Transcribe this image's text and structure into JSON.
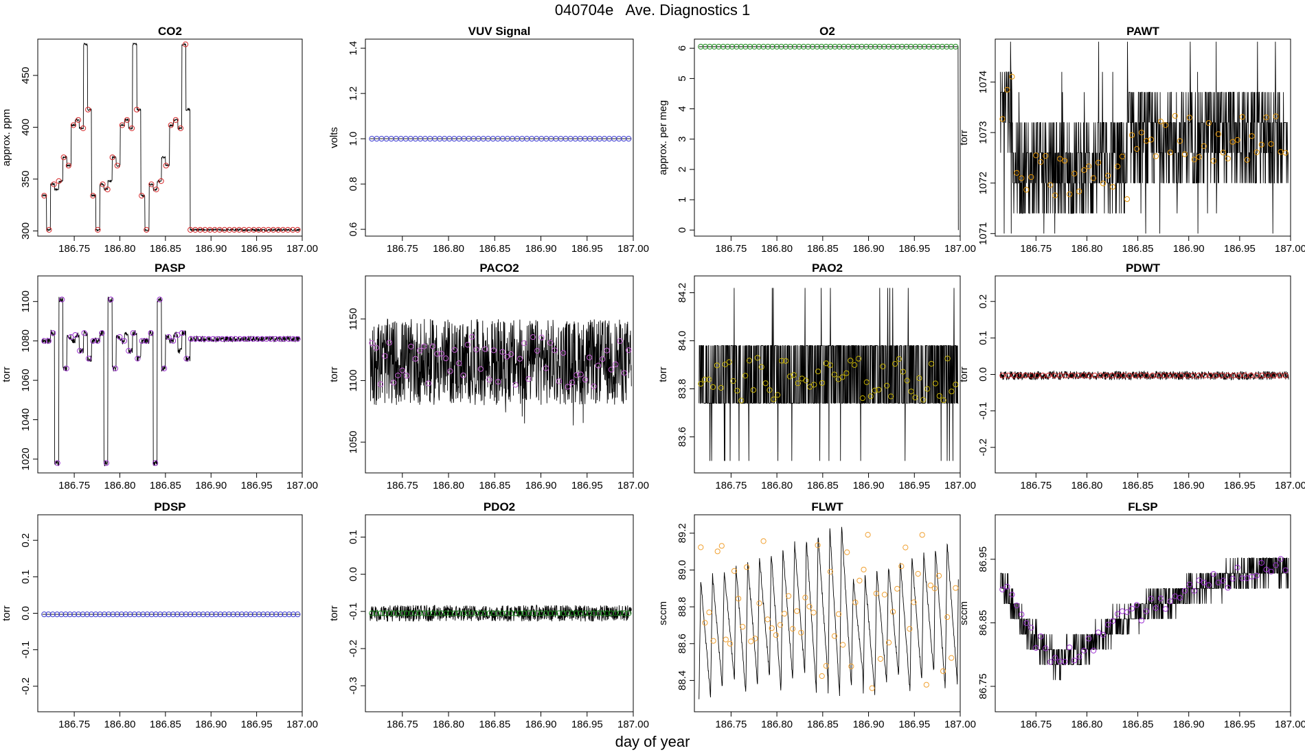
{
  "title": "040704e   Ave. Diagnostics 1",
  "xlabel": "day of year",
  "chart_data": [
    {
      "id": "co2",
      "type": "line",
      "title": "CO2",
      "ylabel": "approx. ppm",
      "xlim": [
        186.71,
        187.0
      ],
      "ylim": [
        295,
        485
      ],
      "xticks": [
        "186.75",
        "186.80",
        "186.85",
        "186.90",
        "186.95",
        "187.00"
      ],
      "yticks": [
        "300",
        "350",
        "400",
        "450"
      ],
      "marker_color": "#d62728",
      "marker_count": 53,
      "pattern": "co2_cycle",
      "cycle_values": [
        334,
        301,
        345,
        340,
        348,
        371,
        363,
        402,
        407,
        399,
        480,
        417
      ],
      "tail_value": 301,
      "tail_start": 186.877
    },
    {
      "id": "vuv",
      "type": "line",
      "title": "VUV Signal",
      "ylabel": "volts",
      "xlim": [
        186.71,
        187.0
      ],
      "ylim": [
        0.57,
        1.44
      ],
      "xticks": [
        "186.75",
        "186.80",
        "186.85",
        "186.90",
        "186.95",
        "187.00"
      ],
      "yticks": [
        "0.6",
        "0.8",
        "1.0",
        "1.2",
        "1.4"
      ],
      "marker_color": "#3a3acf",
      "marker_count": 54,
      "pattern": "flat",
      "level": 1.0,
      "noise": 0.0
    },
    {
      "id": "o2",
      "type": "line",
      "title": "O2",
      "ylabel": "approx. per meg",
      "xlim": [
        186.71,
        187.0
      ],
      "ylim": [
        -0.2,
        6.3
      ],
      "xticks": [
        "186.75",
        "186.80",
        "186.85",
        "186.90",
        "186.95",
        "187.00"
      ],
      "yticks": [
        "0",
        "1",
        "2",
        "3",
        "4",
        "5",
        "6"
      ],
      "marker_color": "#1a8a1a",
      "marker_count": 58,
      "pattern": "flat_drop",
      "level": 6.05,
      "noise": 0.0,
      "drop_to": 0.0
    },
    {
      "id": "pawt",
      "type": "line",
      "title": "PAWT",
      "ylabel": "torr",
      "xlim": [
        186.71,
        187.0
      ],
      "ylim": [
        1070.95,
        1074.85
      ],
      "xticks": [
        "186.75",
        "186.80",
        "186.85",
        "186.90",
        "186.95",
        "187.00"
      ],
      "yticks": [
        "1071",
        "1072",
        "1073",
        "1074"
      ],
      "marker_color": "#e69500",
      "marker_count": 60,
      "pattern": "quantized",
      "levels": [
        1071.0,
        1071.4,
        1072.0,
        1072.6,
        1073.2,
        1073.8,
        1074.2,
        1074.8
      ],
      "segments": [
        [
          186.715,
          186.727,
          1073.6
        ],
        [
          186.727,
          186.84,
          1072.3
        ],
        [
          186.84,
          187.0,
          1072.9
        ]
      ],
      "marker_mean": [
        [
          186.715,
          186.727,
          1073.7
        ],
        [
          186.727,
          186.84,
          1072.1
        ],
        [
          186.84,
          187.0,
          1072.9
        ]
      ]
    },
    {
      "id": "pasp",
      "type": "line",
      "title": "PASP",
      "ylabel": "torr",
      "xlim": [
        186.71,
        187.0
      ],
      "ylim": [
        1013,
        1113
      ],
      "xticks": [
        "186.75",
        "186.80",
        "186.85",
        "186.90",
        "186.95",
        "187.00"
      ],
      "yticks": [
        "1020",
        "1040",
        "1060",
        "1080",
        "1100"
      ],
      "marker_color": "#9b30d0",
      "marker_count": 58,
      "pattern": "pasp_cycle",
      "cycle_values": [
        1080,
        1080,
        1084,
        1018,
        1101,
        1066,
        1082,
        1080,
        1083,
        1075,
        1084,
        1071
      ],
      "tail_value": 1081,
      "tail_start": 186.877
    },
    {
      "id": "paco2",
      "type": "line",
      "title": "PACO2",
      "ylabel": "torr",
      "xlim": [
        186.71,
        187.0
      ],
      "ylim": [
        1025,
        1185
      ],
      "xticks": [
        "186.75",
        "186.80",
        "186.85",
        "186.90",
        "186.95",
        "187.00"
      ],
      "yticks": [
        "1050",
        "1100",
        "1150"
      ],
      "marker_color": "#c45bd6",
      "marker_count": 60,
      "pattern": "noise",
      "level": 1115,
      "noise": 35
    },
    {
      "id": "pao2",
      "type": "line",
      "title": "PAO2",
      "ylabel": "torr",
      "xlim": [
        186.71,
        187.0
      ],
      "ylim": [
        83.45,
        84.27
      ],
      "xticks": [
        "186.75",
        "186.80",
        "186.85",
        "186.90",
        "186.95",
        "187.00"
      ],
      "yticks": [
        "83.6",
        "83.8",
        "84.0",
        "84.2"
      ],
      "marker_color": "#c8b400",
      "marker_count": 64,
      "pattern": "quantized",
      "levels": [
        83.5,
        83.74,
        83.98,
        84.22
      ],
      "segments": [
        [
          186.715,
          187.0,
          83.86
        ]
      ],
      "marker_mean": [
        [
          186.715,
          187.0,
          83.84
        ]
      ]
    },
    {
      "id": "pdwt",
      "type": "line",
      "title": "PDWT",
      "ylabel": "torr",
      "xlim": [
        186.71,
        187.0
      ],
      "ylim": [
        -0.27,
        0.27
      ],
      "xticks": [
        "186.75",
        "186.80",
        "186.85",
        "186.90",
        "186.95",
        "187.00"
      ],
      "yticks": [
        "-0.2",
        "-0.1",
        "0.0",
        "0.1",
        "0.2"
      ],
      "marker_color": "#d62728",
      "marker_count": 50,
      "pattern": "flat",
      "level": -0.003,
      "noise": 0.012
    },
    {
      "id": "pdsp",
      "type": "line",
      "title": "PDSP",
      "ylabel": "torr",
      "xlim": [
        186.71,
        187.0
      ],
      "ylim": [
        -0.27,
        0.27
      ],
      "xticks": [
        "186.75",
        "186.80",
        "186.85",
        "186.90",
        "186.95",
        "187.00"
      ],
      "yticks": [
        "-0.2",
        "-0.1",
        "0.0",
        "0.1",
        "0.2"
      ],
      "marker_color": "#3a3acf",
      "marker_count": 60,
      "pattern": "flat",
      "level": -0.003,
      "noise": 0.0
    },
    {
      "id": "pdo2",
      "type": "line",
      "title": "PDO2",
      "ylabel": "torr",
      "xlim": [
        186.71,
        187.0
      ],
      "ylim": [
        -0.37,
        0.16
      ],
      "xticks": [
        "186.75",
        "186.80",
        "186.85",
        "186.90",
        "186.95",
        "187.00"
      ],
      "yticks": [
        "-0.3",
        "-0.2",
        "-0.1",
        "0.0",
        "0.1"
      ],
      "marker_color": "#1a8a1a",
      "marker_count": 60,
      "pattern": "flat",
      "level": -0.105,
      "noise": 0.022
    },
    {
      "id": "flwt",
      "type": "line",
      "title": "FLWT",
      "ylabel": "sccm",
      "xlim": [
        186.71,
        187.0
      ],
      "ylim": [
        88.23,
        89.3
      ],
      "xticks": [
        "186.75",
        "186.80",
        "186.85",
        "186.90",
        "186.95",
        "187.00"
      ],
      "yticks": [
        "88.4",
        "88.6",
        "88.8",
        "89.0",
        "89.2"
      ],
      "marker_color": "#f0a030",
      "marker_count": 62,
      "pattern": "sawtooth",
      "period": 0.0128,
      "amp_low": [
        88.3,
        88.45
      ],
      "amp_high": [
        88.95,
        89.25
      ]
    },
    {
      "id": "flsp",
      "type": "line",
      "title": "FLSP",
      "ylabel": "sccm",
      "xlim": [
        186.71,
        187.0
      ],
      "ylim": [
        86.71,
        87.02
      ],
      "xticks": [
        "186.75",
        "186.80",
        "186.85",
        "186.90",
        "186.95",
        "187.00"
      ],
      "yticks": [
        "86.75",
        "86.85",
        "86.95"
      ],
      "marker_color": "#9b30d0",
      "marker_count": 60,
      "pattern": "quantized_curve",
      "step": 0.024,
      "curve": [
        [
          186.715,
          86.92
        ],
        [
          186.74,
          86.84
        ],
        [
          186.77,
          86.79
        ],
        [
          186.8,
          86.81
        ],
        [
          186.83,
          86.85
        ],
        [
          186.87,
          86.88
        ],
        [
          186.92,
          86.91
        ],
        [
          186.96,
          86.93
        ],
        [
          187.0,
          86.94
        ]
      ]
    }
  ]
}
